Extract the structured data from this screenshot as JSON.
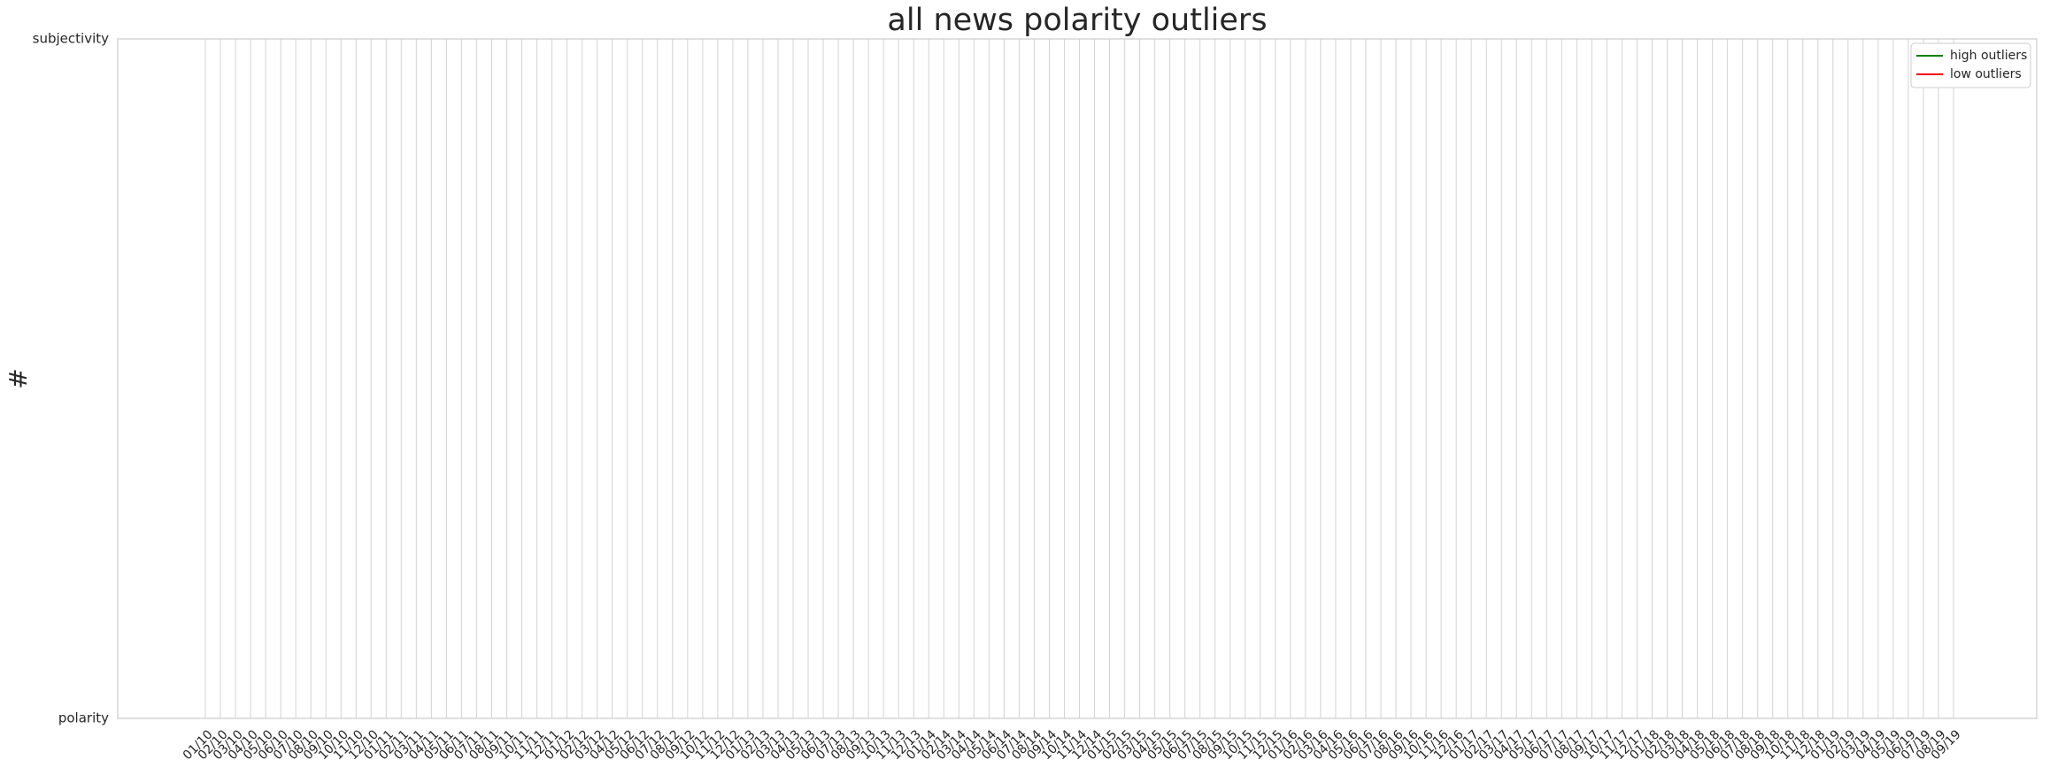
{
  "chart_data": {
    "type": "line",
    "title": "all news polarity outliers",
    "ylabel": "#",
    "categories": [
      "01/10",
      "02/10",
      "03/10",
      "04/10",
      "05/10",
      "06/10",
      "07/10",
      "08/10",
      "09/10",
      "10/10",
      "11/10",
      "12/10",
      "01/11",
      "02/11",
      "03/11",
      "04/11",
      "05/11",
      "06/11",
      "07/11",
      "08/11",
      "09/11",
      "10/11",
      "11/11",
      "12/11",
      "01/12",
      "02/12",
      "03/12",
      "04/12",
      "05/12",
      "06/12",
      "07/12",
      "08/12",
      "09/12",
      "10/12",
      "11/12",
      "12/12",
      "01/13",
      "02/13",
      "03/13",
      "04/13",
      "05/13",
      "06/13",
      "07/13",
      "08/13",
      "09/13",
      "10/13",
      "11/13",
      "12/13",
      "01/14",
      "02/14",
      "03/14",
      "04/14",
      "05/14",
      "06/14",
      "07/14",
      "08/14",
      "09/14",
      "10/14",
      "11/14",
      "12/14",
      "01/15",
      "02/15",
      "03/15",
      "04/15",
      "05/15",
      "06/15",
      "07/15",
      "08/15",
      "09/15",
      "10/15",
      "11/15",
      "12/15",
      "01/16",
      "02/16",
      "03/16",
      "04/16",
      "05/16",
      "06/16",
      "07/16",
      "08/16",
      "09/16",
      "10/16",
      "11/16",
      "12/16",
      "01/17",
      "02/17",
      "03/17",
      "04/17",
      "05/17",
      "06/17",
      "07/17",
      "08/17",
      "09/17",
      "10/17",
      "11/17",
      "12/17",
      "01/18",
      "02/18",
      "03/18",
      "04/18",
      "05/18",
      "06/18",
      "07/18",
      "08/18",
      "09/18",
      "10/18",
      "11/18",
      "12/18",
      "01/19",
      "02/19",
      "03/19",
      "04/19",
      "05/19",
      "06/19",
      "07/19",
      "08/19",
      "09/19"
    ],
    "series": [
      {
        "name": "high outliers",
        "color": "#008000",
        "values": [
          null,
          null,
          null,
          null,
          null,
          null,
          null,
          null,
          null,
          null,
          null,
          null,
          null,
          null,
          null,
          null,
          null,
          null,
          null,
          null,
          null,
          null,
          null,
          null,
          null,
          null,
          null,
          null,
          null,
          null,
          null,
          null,
          null,
          null,
          null,
          null,
          null,
          null,
          null,
          null,
          null,
          null,
          null,
          null,
          null,
          null,
          null,
          null,
          null,
          null,
          null,
          null,
          null,
          null,
          null,
          null,
          null,
          null,
          null,
          null,
          null,
          null,
          null,
          null,
          null,
          null,
          null,
          null,
          null,
          null,
          null,
          null,
          null,
          null,
          null,
          null,
          null,
          null,
          null,
          null,
          null,
          null,
          null,
          null,
          null,
          null,
          null,
          null,
          null,
          null,
          null,
          null,
          null,
          null,
          null,
          null,
          null,
          null,
          null,
          null,
          null,
          null,
          null,
          null,
          null,
          null,
          null,
          null,
          null,
          null,
          null,
          null,
          null,
          null,
          null,
          null,
          null
        ]
      },
      {
        "name": "low outliers",
        "color": "#ff0000",
        "values": [
          null,
          null,
          null,
          null,
          null,
          null,
          null,
          null,
          null,
          null,
          null,
          null,
          null,
          null,
          null,
          null,
          null,
          null,
          null,
          null,
          null,
          null,
          null,
          null,
          null,
          null,
          null,
          null,
          null,
          null,
          null,
          null,
          null,
          null,
          null,
          null,
          null,
          null,
          null,
          null,
          null,
          null,
          null,
          null,
          null,
          null,
          null,
          null,
          null,
          null,
          null,
          null,
          null,
          null,
          null,
          null,
          null,
          null,
          null,
          null,
          null,
          null,
          null,
          null,
          null,
          null,
          null,
          null,
          null,
          null,
          null,
          null,
          null,
          null,
          null,
          null,
          null,
          null,
          null,
          null,
          null,
          null,
          null,
          null,
          null,
          null,
          null,
          null,
          null,
          null,
          null,
          null,
          null,
          null,
          null,
          null,
          null,
          null,
          null,
          null,
          null,
          null,
          null,
          null,
          null,
          null,
          null,
          null,
          null,
          null,
          null,
          null,
          null,
          null,
          null,
          null,
          null
        ]
      }
    ],
    "ylim": [
      0,
      1
    ],
    "yticks": [
      {
        "value": 0,
        "label": "polarity"
      },
      {
        "value": 1,
        "label": "subjectivity"
      }
    ],
    "grid": true,
    "legend": "upper right"
  }
}
